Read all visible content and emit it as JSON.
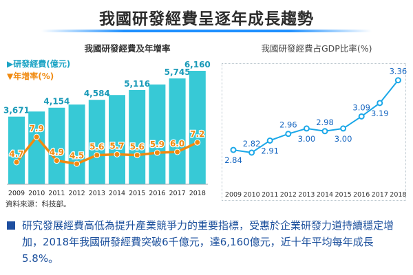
{
  "title": "我國研發經費呈逐年成長趨勢",
  "source": "資料來源：科技部。",
  "footnote": "研究發展經費高低為提升產業競爭力的重要指標，受惠於企業研發力道持續穩定增加，2018年我國研發經費突破6千億元，達6,160億元，近十年平均每年成長5.8%。",
  "colors": {
    "bar": "#37c9d6",
    "growth_line": "#f08a10",
    "gdp_line": "#1aa7e8",
    "title_rule": "#1e90ff",
    "footnote_text": "#1b4f9c"
  },
  "chart_data": [
    {
      "type": "bar",
      "title": "我國研發經費及年增率",
      "categories": [
        "2009",
        "2010",
        "2011",
        "2012",
        "2013",
        "2014",
        "2015",
        "2016",
        "2017",
        "2018"
      ],
      "series": [
        {
          "name": "研發經費(億元)",
          "type": "bar",
          "values": [
            3671,
            null,
            4154,
            null,
            4584,
            null,
            5116,
            null,
            5745,
            6160
          ],
          "values_estimated": [
            3671,
            3950,
            4154,
            4330,
            4584,
            4845,
            5116,
            5418,
            5745,
            6160
          ],
          "labels": [
            "3,671",
            "",
            "4,154",
            "",
            "4,584",
            "",
            "5,116",
            "",
            "5,745",
            "6,160"
          ]
        },
        {
          "name": "年增率(%)",
          "type": "line",
          "values": [
            4.7,
            7.9,
            4.9,
            4.5,
            5.6,
            5.7,
            5.6,
            5.9,
            6.0,
            7.2
          ]
        }
      ],
      "legend_position": "top-left",
      "grid": false
    },
    {
      "type": "line",
      "title": "我國研發經費占GDP比率(%)",
      "categories": [
        "2009",
        "2010",
        "2011",
        "2012",
        "2013",
        "2014",
        "2015",
        "2016",
        "2017",
        "2018"
      ],
      "series": [
        {
          "values": [
            2.84,
            2.82,
            2.91,
            2.96,
            3.0,
            2.98,
            3.0,
            3.09,
            3.19,
            3.36
          ]
        }
      ],
      "grid": false
    }
  ]
}
